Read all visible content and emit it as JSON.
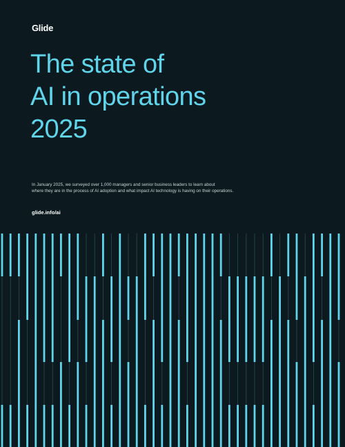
{
  "brand": {
    "logo": "Glide"
  },
  "cover": {
    "title_lines": [
      "The state of",
      "AI in operations",
      "2025"
    ],
    "intro_lines": [
      "In January 2025, we surveyed over 1,000 managers and senior business leaders to learn about",
      "where they are in the process of AI adoption and what impact AI technology is having on their operations."
    ],
    "url": "glide.info/ai"
  },
  "colors": {
    "background": "#0c1a1f",
    "accent": "#5fd4ea",
    "dim_line": "#2a4a53",
    "text": "#ffffff"
  }
}
